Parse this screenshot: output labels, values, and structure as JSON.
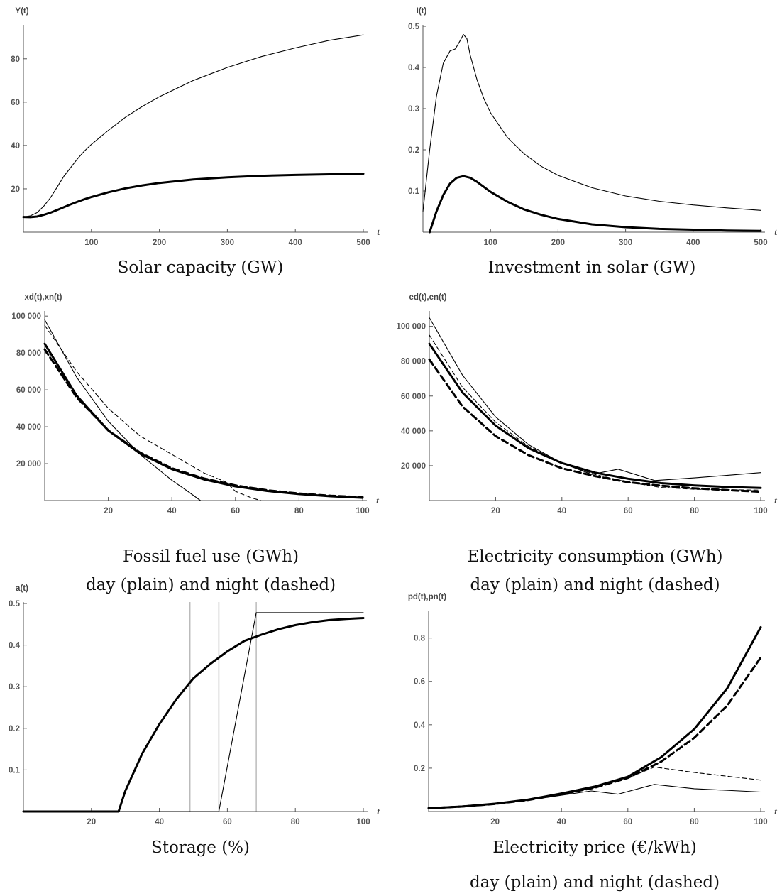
{
  "chart_data": [
    {
      "id": "solar-capacity",
      "type": "line",
      "ylabel": "Y(t)",
      "xlabel": "t",
      "caption": [
        "Solar capacity (GW)"
      ],
      "xlim": [
        0,
        500
      ],
      "ylim": [
        0,
        95
      ],
      "xticks": [
        100,
        200,
        300,
        400,
        500
      ],
      "yticks": [
        20,
        40,
        60,
        80
      ],
      "series": [
        {
          "style": "thin",
          "x": [
            0,
            10,
            20,
            30,
            40,
            50,
            60,
            70,
            80,
            90,
            100,
            125,
            150,
            175,
            200,
            250,
            300,
            350,
            400,
            450,
            500
          ],
          "y": [
            7,
            7.5,
            9,
            12,
            16,
            21,
            26,
            30,
            34,
            37.5,
            40.5,
            47,
            53,
            58,
            62.5,
            70,
            76,
            81,
            85,
            88.5,
            91
          ]
        },
        {
          "style": "thick",
          "x": [
            0,
            10,
            20,
            30,
            40,
            50,
            60,
            70,
            80,
            90,
            100,
            125,
            150,
            175,
            200,
            250,
            300,
            350,
            400,
            450,
            500
          ],
          "y": [
            7,
            6.9,
            7.2,
            8,
            9,
            10.3,
            11.6,
            12.9,
            14.1,
            15.2,
            16.2,
            18.4,
            20.2,
            21.6,
            22.7,
            24.3,
            25.3,
            26,
            26.4,
            26.7,
            27
          ]
        }
      ]
    },
    {
      "id": "solar-investment",
      "type": "line",
      "ylabel": "I(t)",
      "xlabel": "t",
      "caption": [
        "Investment in solar (GW)"
      ],
      "xlim": [
        0,
        500
      ],
      "ylim": [
        0,
        0.5
      ],
      "xticks": [
        100,
        200,
        300,
        400,
        500
      ],
      "yticks": [
        0.1,
        0.2,
        0.3,
        0.4,
        0.5
      ],
      "ytick_labels": [
        "0.1",
        "0.2",
        "0.3",
        "0.4",
        "0.5"
      ],
      "series": [
        {
          "style": "thin",
          "x": [
            0,
            10,
            20,
            30,
            40,
            48,
            55,
            60,
            65,
            70,
            80,
            90,
            100,
            125,
            150,
            175,
            200,
            250,
            300,
            350,
            400,
            450,
            500
          ],
          "y": [
            0.05,
            0.2,
            0.33,
            0.41,
            0.44,
            0.445,
            0.465,
            0.48,
            0.47,
            0.43,
            0.37,
            0.325,
            0.29,
            0.23,
            0.19,
            0.16,
            0.138,
            0.108,
            0.088,
            0.075,
            0.066,
            0.059,
            0.053
          ]
        },
        {
          "style": "thick",
          "x": [
            10,
            20,
            30,
            40,
            50,
            60,
            70,
            80,
            90,
            100,
            125,
            150,
            175,
            200,
            250,
            300,
            350,
            400,
            450,
            500
          ],
          "y": [
            0,
            0.05,
            0.09,
            0.118,
            0.132,
            0.136,
            0.132,
            0.122,
            0.11,
            0.098,
            0.074,
            0.055,
            0.042,
            0.032,
            0.019,
            0.012,
            0.008,
            0.006,
            0.004,
            0.003
          ]
        }
      ]
    },
    {
      "id": "fossil-fuel",
      "type": "line",
      "ylabel": "xd(t),xn(t)",
      "xlabel": "t",
      "caption": [
        "Fossil fuel use (GWh)",
        "day (plain) and night (dashed)"
      ],
      "xlim": [
        0,
        100
      ],
      "ylim": [
        0,
        102000
      ],
      "xticks": [
        20,
        40,
        60,
        80,
        100
      ],
      "yticks": [
        20000,
        40000,
        60000,
        80000,
        100000
      ],
      "ytick_labels": [
        "20 000",
        "40 000",
        "60 000",
        "80 000",
        "100 000"
      ],
      "series": [
        {
          "style": "thin",
          "x": [
            0,
            10,
            20,
            30,
            40,
            45,
            49
          ],
          "y": [
            98000,
            67000,
            43000,
            25000,
            11000,
            5000,
            0
          ]
        },
        {
          "style": "thin-dashed",
          "x": [
            0,
            10,
            20,
            30,
            40,
            50,
            57,
            60,
            65,
            68
          ],
          "y": [
            95000,
            70000,
            50000,
            35000,
            25000,
            15000,
            10000,
            5000,
            1500,
            0
          ]
        },
        {
          "style": "thick",
          "x": [
            0,
            10,
            20,
            30,
            40,
            50,
            60,
            70,
            80,
            90,
            100
          ],
          "y": [
            85000,
            57000,
            38000,
            25500,
            17000,
            11500,
            7700,
            5200,
            3500,
            2300,
            1500
          ]
        },
        {
          "style": "thick-dashed",
          "x": [
            0,
            10,
            20,
            30,
            40,
            50,
            60,
            70,
            80,
            90,
            100
          ],
          "y": [
            82000,
            56000,
            38000,
            26000,
            17500,
            12000,
            8200,
            5600,
            3800,
            2600,
            1800
          ]
        }
      ]
    },
    {
      "id": "electricity-consumption",
      "type": "line",
      "ylabel": "ed(t),en(t)",
      "xlabel": "t",
      "caption": [
        "Electricity consumption (GWh)",
        "day (plain) and night (dashed)"
      ],
      "xlim": [
        0,
        100
      ],
      "ylim": [
        0,
        108000
      ],
      "xticks": [
        20,
        40,
        60,
        80,
        100
      ],
      "yticks": [
        20000,
        40000,
        60000,
        80000,
        100000
      ],
      "ytick_labels": [
        "20 000",
        "40 000",
        "60 000",
        "80 000",
        "100 000"
      ],
      "series": [
        {
          "style": "thin",
          "x": [
            0,
            10,
            20,
            30,
            40,
            49,
            57,
            68,
            80,
            100
          ],
          "y": [
            105000,
            72000,
            48000,
            32000,
            21500,
            15000,
            18000,
            11500,
            13000,
            16000
          ]
        },
        {
          "style": "thin-dashed",
          "x": [
            0,
            10,
            20,
            30,
            40,
            50,
            60,
            70,
            80,
            90,
            100
          ],
          "y": [
            95000,
            65000,
            45000,
            31000,
            21500,
            15000,
            10500,
            7500,
            6500,
            6200,
            6000
          ]
        },
        {
          "style": "thick",
          "x": [
            0,
            10,
            20,
            30,
            40,
            50,
            60,
            70,
            80,
            90,
            100
          ],
          "y": [
            90000,
            62000,
            43000,
            30000,
            21500,
            16000,
            12500,
            10000,
            8700,
            7800,
            7200
          ]
        },
        {
          "style": "thick-dashed",
          "x": [
            0,
            10,
            20,
            30,
            40,
            50,
            60,
            70,
            80,
            90,
            100
          ],
          "y": [
            81000,
            54000,
            37000,
            26000,
            18500,
            14000,
            10500,
            8500,
            7000,
            6000,
            5000
          ]
        }
      ]
    },
    {
      "id": "storage",
      "type": "line",
      "ylabel": "a(t)",
      "xlabel": "t",
      "caption": [
        "Storage (%)"
      ],
      "xlim": [
        0,
        100
      ],
      "ylim": [
        0,
        0.5
      ],
      "xticks": [
        20,
        40,
        60,
        80,
        100
      ],
      "yticks": [
        0.1,
        0.2,
        0.3,
        0.4,
        0.5
      ],
      "ytick_labels": [
        "0.1",
        "0.2",
        "0.3",
        "0.4",
        "0.5"
      ],
      "vlines": [
        49,
        57.5,
        68.5
      ],
      "series": [
        {
          "style": "thin",
          "x": [
            0,
            57.5,
            68.5,
            100
          ],
          "y": [
            0,
            0,
            0.478,
            0.478
          ]
        },
        {
          "style": "thick",
          "x": [
            0,
            28,
            30,
            35,
            40,
            45,
            50,
            55,
            60,
            65,
            70,
            75,
            80,
            85,
            90,
            95,
            100
          ],
          "y": [
            0,
            0,
            0.05,
            0.14,
            0.21,
            0.27,
            0.32,
            0.355,
            0.385,
            0.41,
            0.425,
            0.438,
            0.448,
            0.455,
            0.46,
            0.463,
            0.465
          ]
        }
      ]
    },
    {
      "id": "electricity-price",
      "type": "line",
      "ylabel": "pd(t),pn(t)",
      "xlabel": "t",
      "caption": [
        "Electricity price (€/kWh)",
        "day (plain) and night (dashed)"
      ],
      "xlim": [
        0,
        100
      ],
      "ylim": [
        0,
        0.92
      ],
      "xticks": [
        20,
        40,
        60,
        80,
        100
      ],
      "yticks": [
        0.2,
        0.4,
        0.6,
        0.8
      ],
      "ytick_labels": [
        "0.2",
        "0.4",
        "0.6",
        "0.8"
      ],
      "series": [
        {
          "style": "thin",
          "x": [
            0,
            10,
            20,
            30,
            40,
            49,
            57,
            68,
            80,
            100
          ],
          "y": [
            0.015,
            0.023,
            0.035,
            0.052,
            0.075,
            0.095,
            0.08,
            0.125,
            0.105,
            0.09
          ]
        },
        {
          "style": "thin-dashed",
          "x": [
            0,
            10,
            20,
            30,
            40,
            50,
            60,
            68,
            80,
            100
          ],
          "y": [
            0.015,
            0.023,
            0.035,
            0.052,
            0.078,
            0.11,
            0.155,
            0.205,
            0.18,
            0.145
          ]
        },
        {
          "style": "thick",
          "x": [
            0,
            10,
            20,
            30,
            40,
            50,
            60,
            70,
            80,
            90,
            100
          ],
          "y": [
            0.015,
            0.023,
            0.036,
            0.055,
            0.083,
            0.115,
            0.16,
            0.25,
            0.38,
            0.57,
            0.85
          ]
        },
        {
          "style": "thick-dashed",
          "x": [
            0,
            10,
            20,
            30,
            40,
            50,
            60,
            70,
            80,
            90,
            100
          ],
          "y": [
            0.015,
            0.023,
            0.035,
            0.053,
            0.08,
            0.11,
            0.155,
            0.23,
            0.34,
            0.49,
            0.71
          ]
        }
      ]
    }
  ]
}
